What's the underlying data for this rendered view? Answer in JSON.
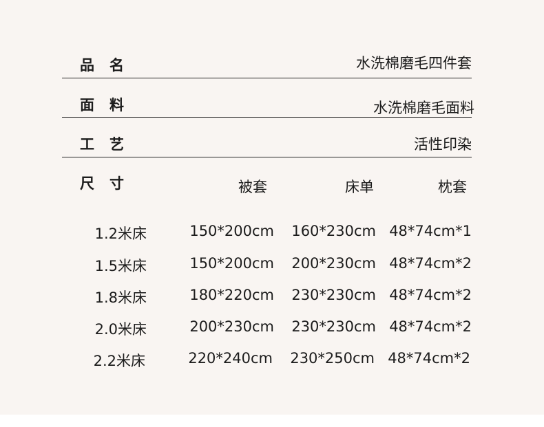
{
  "specs": [
    {
      "label": "品名",
      "value": "水洗棉磨毛四件套"
    },
    {
      "label": "面料",
      "value": "水洗棉磨毛面料"
    },
    {
      "label": "工艺",
      "value": "活性印染"
    }
  ],
  "size": {
    "label": "尺寸",
    "headers": [
      "被套",
      "床单",
      "枕套"
    ],
    "rows": [
      {
        "bed": "1.2米床",
        "duvet": "150*200cm",
        "sheet": "160*230cm",
        "pillow": "48*74cm*1"
      },
      {
        "bed": "1.5米床",
        "duvet": "150*200cm",
        "sheet": "200*230cm",
        "pillow": "48*74cm*2"
      },
      {
        "bed": "1.8米床",
        "duvet": "180*220cm",
        "sheet": "230*230cm",
        "pillow": "48*74cm*2"
      },
      {
        "bed": "2.0米床",
        "duvet": "200*230cm",
        "sheet": "230*230cm",
        "pillow": "48*74cm*2"
      },
      {
        "bed": "2.2米床",
        "duvet": "220*240cm",
        "sheet": "230*250cm",
        "pillow": "48*74cm*2"
      }
    ]
  }
}
